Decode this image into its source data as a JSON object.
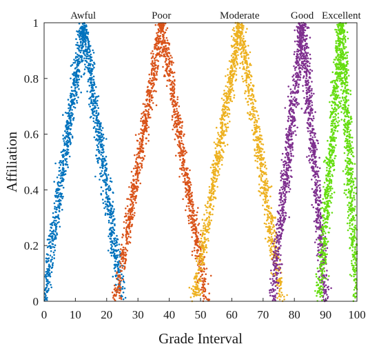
{
  "chart_data": {
    "type": "scatter",
    "title": "",
    "xlabel": "Grade Interval",
    "ylabel": "Affiliation",
    "xlim": [
      0,
      100
    ],
    "ylim": [
      0,
      1
    ],
    "xticks": [
      0,
      10,
      20,
      30,
      40,
      50,
      60,
      70,
      80,
      90,
      100
    ],
    "yticks": [
      0,
      0.2,
      0.4,
      0.6,
      0.8,
      1
    ],
    "ytick_labels": [
      "0",
      "0.2",
      "0.4",
      "0.6",
      "0.8",
      "1"
    ],
    "grid": false,
    "series": [
      {
        "name": "Awful",
        "color": "#0072bd",
        "peak_x": 12.5,
        "peak_y": 1,
        "support": [
          0,
          25
        ]
      },
      {
        "name": "Poor",
        "color": "#d95319",
        "peak_x": 37.5,
        "peak_y": 1,
        "support": [
          23,
          52
        ]
      },
      {
        "name": "Moderate",
        "color": "#edb120",
        "peak_x": 62.5,
        "peak_y": 1,
        "support": [
          48,
          76
        ]
      },
      {
        "name": "Good",
        "color": "#7e2f8e",
        "peak_x": 82.5,
        "peak_y": 1,
        "support": [
          73,
          90
        ]
      },
      {
        "name": "Excellent",
        "color": "#66dd11",
        "peak_x": 95,
        "peak_y": 1,
        "support": [
          88,
          100
        ]
      }
    ]
  }
}
